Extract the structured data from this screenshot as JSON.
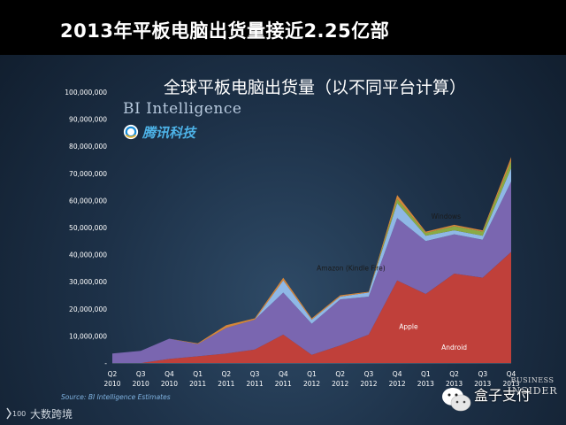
{
  "slide_title": "2013年平板电脑出货量接近2.25亿部",
  "chart_title": "全球平板电脑出货量（以不同平台计算）",
  "logos": {
    "bi_intelligence": "BI Intelligence",
    "tencent_tech": "腾讯科技",
    "business_insider_line1": "BUSINESS",
    "business_insider_line2": "INSIDER",
    "dashuju": "大数跨境",
    "watermark": "盒子支付"
  },
  "source": "Source: BI Intelligence Estimates",
  "colors": {
    "android": "#c0403a",
    "apple": "#7a66b0",
    "windows": "#8aaa44",
    "amazon": "#8fb8e6",
    "other": "#d4863a",
    "axis_text": "#ffffff"
  },
  "chart_data": {
    "type": "area",
    "stacked": true,
    "title": "全球平板电脑出货量（以不同平台计算）",
    "xlabel": "",
    "ylabel": "",
    "ylim": [
      0,
      100000000
    ],
    "yticks": [
      "-",
      "10,000,000",
      "20,000,000",
      "30,000,000",
      "40,000,000",
      "50,000,000",
      "60,000,000",
      "70,000,000",
      "80,000,000",
      "90,000,000",
      "100,000,000"
    ],
    "categories": [
      [
        "Q2",
        "2010"
      ],
      [
        "Q3",
        "2010"
      ],
      [
        "Q4",
        "2010"
      ],
      [
        "Q1",
        "2011"
      ],
      [
        "Q2",
        "2011"
      ],
      [
        "Q3",
        "2011"
      ],
      [
        "Q4",
        "2011"
      ],
      [
        "Q1",
        "2012"
      ],
      [
        "Q2",
        "2012"
      ],
      [
        "Q3",
        "2012"
      ],
      [
        "Q4",
        "2012"
      ],
      [
        "Q1",
        "2013"
      ],
      [
        "Q2",
        "2013"
      ],
      [
        "Q3",
        "2013"
      ],
      [
        "Q4",
        "2013"
      ]
    ],
    "series": [
      {
        "name": "Android",
        "color": "#c0403a",
        "values": [
          0,
          0,
          1500000,
          2500000,
          3500000,
          5000000,
          10500000,
          3000000,
          6500000,
          10500000,
          30500000,
          25500000,
          33000000,
          31500000,
          41000000
        ]
      },
      {
        "name": "Apple",
        "color": "#7a66b0",
        "values": [
          3500000,
          4500000,
          7500000,
          4500000,
          9500000,
          11000000,
          15500000,
          11500000,
          17000000,
          14000000,
          23000000,
          19500000,
          14500000,
          14000000,
          26000000
        ]
      },
      {
        "name": "Amazon (Kindle Fire)",
        "color": "#8fb8e6",
        "values": [
          0,
          0,
          0,
          0,
          0,
          0,
          4500000,
          1500000,
          1000000,
          1500000,
          5500000,
          2000000,
          1500000,
          1500000,
          5000000
        ]
      },
      {
        "name": "Windows",
        "color": "#8aaa44",
        "values": [
          0,
          0,
          0,
          0,
          0,
          0,
          0,
          0,
          0,
          0,
          1500000,
          1000000,
          1500000,
          1500000,
          2500000
        ]
      },
      {
        "name": "",
        "color": "#d4863a",
        "values": [
          0,
          0,
          0,
          300000,
          1000000,
          500000,
          1000000,
          500000,
          500000,
          300000,
          1500000,
          500000,
          500000,
          500000,
          1500000
        ]
      }
    ],
    "series_labels": [
      {
        "text": "Android",
        "series": 0
      },
      {
        "text": "Apple",
        "series": 1
      },
      {
        "text": "Amazon (Kindle Fire)",
        "series": 2
      },
      {
        "text": "Windows",
        "series": 3
      }
    ],
    "grid": false,
    "legend": "inline labels"
  }
}
